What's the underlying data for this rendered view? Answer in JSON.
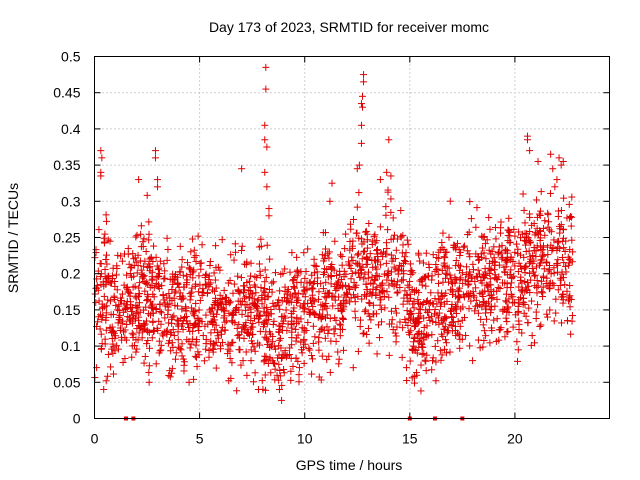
{
  "chart_data": {
    "type": "scatter",
    "title": "Day 173 of 2023, SRMTID for receiver momc",
    "xlabel": "GPS time / hours",
    "ylabel": "SRMTID / TECUs",
    "xlim": [
      0,
      24.5
    ],
    "ylim": [
      0,
      0.5
    ],
    "x_ticks": [
      "0",
      "5",
      "10",
      "15",
      "20"
    ],
    "x_tick_values": [
      0,
      5,
      10,
      15,
      20
    ],
    "y_ticks": [
      "0",
      "0.05",
      "0.1",
      "0.15",
      "0.2",
      "0.25",
      "0.3",
      "0.35",
      "0.4",
      "0.45",
      "0.5"
    ],
    "y_tick_values": [
      0,
      0.05,
      0.1,
      0.15,
      0.2,
      0.25,
      0.3,
      0.35,
      0.4,
      0.45,
      0.5
    ],
    "grid": true,
    "marker": "+",
    "color": "#e00000",
    "zero_markers_x": [
      1.5,
      1.85,
      15.0,
      16.2,
      17.5
    ],
    "profile": [
      [
        0.0,
        0.15,
        0.05
      ],
      [
        0.5,
        0.16,
        0.06
      ],
      [
        1.0,
        0.14,
        0.05
      ],
      [
        1.5,
        0.15,
        0.05
      ],
      [
        2.0,
        0.17,
        0.06
      ],
      [
        2.5,
        0.16,
        0.06
      ],
      [
        3.0,
        0.15,
        0.05
      ],
      [
        3.5,
        0.15,
        0.05
      ],
      [
        4.0,
        0.14,
        0.05
      ],
      [
        4.5,
        0.15,
        0.05
      ],
      [
        5.0,
        0.17,
        0.05
      ],
      [
        5.5,
        0.16,
        0.05
      ],
      [
        6.0,
        0.15,
        0.05
      ],
      [
        6.5,
        0.14,
        0.05
      ],
      [
        7.0,
        0.15,
        0.05
      ],
      [
        7.5,
        0.14,
        0.05
      ],
      [
        8.0,
        0.15,
        0.06
      ],
      [
        8.5,
        0.13,
        0.05
      ],
      [
        9.0,
        0.13,
        0.05
      ],
      [
        9.5,
        0.14,
        0.05
      ],
      [
        10.0,
        0.15,
        0.05
      ],
      [
        10.5,
        0.15,
        0.05
      ],
      [
        11.0,
        0.16,
        0.05
      ],
      [
        11.5,
        0.17,
        0.05
      ],
      [
        12.0,
        0.19,
        0.05
      ],
      [
        12.5,
        0.2,
        0.05
      ],
      [
        13.0,
        0.2,
        0.05
      ],
      [
        13.5,
        0.2,
        0.05
      ],
      [
        14.0,
        0.21,
        0.06
      ],
      [
        14.5,
        0.19,
        0.05
      ],
      [
        15.0,
        0.15,
        0.05
      ],
      [
        15.5,
        0.14,
        0.05
      ],
      [
        16.0,
        0.15,
        0.05
      ],
      [
        16.5,
        0.17,
        0.05
      ],
      [
        17.0,
        0.17,
        0.05
      ],
      [
        17.5,
        0.18,
        0.05
      ],
      [
        18.0,
        0.19,
        0.05
      ],
      [
        18.5,
        0.18,
        0.05
      ],
      [
        19.0,
        0.19,
        0.05
      ],
      [
        19.5,
        0.2,
        0.05
      ],
      [
        20.0,
        0.19,
        0.05
      ],
      [
        20.5,
        0.21,
        0.06
      ],
      [
        21.0,
        0.22,
        0.06
      ],
      [
        21.5,
        0.22,
        0.06
      ],
      [
        22.0,
        0.2,
        0.05
      ],
      [
        22.5,
        0.21,
        0.05
      ],
      [
        22.8,
        0.21,
        0.05
      ]
    ],
    "spikes": [
      [
        0.3,
        0.37
      ],
      [
        0.3,
        0.34
      ],
      [
        0.3,
        0.335
      ],
      [
        0.35,
        0.36
      ],
      [
        2.1,
        0.33
      ],
      [
        2.9,
        0.37
      ],
      [
        2.9,
        0.36
      ],
      [
        3.0,
        0.33
      ],
      [
        3.0,
        0.32
      ],
      [
        8.15,
        0.485
      ],
      [
        8.15,
        0.455
      ],
      [
        8.1,
        0.405
      ],
      [
        8.1,
        0.385
      ],
      [
        8.2,
        0.375
      ],
      [
        8.1,
        0.34
      ],
      [
        8.2,
        0.32
      ],
      [
        8.3,
        0.29
      ],
      [
        8.3,
        0.28
      ],
      [
        7.0,
        0.345
      ],
      [
        11.3,
        0.325
      ],
      [
        11.2,
        0.3
      ],
      [
        12.8,
        0.475
      ],
      [
        12.8,
        0.465
      ],
      [
        12.75,
        0.445
      ],
      [
        12.7,
        0.435
      ],
      [
        12.75,
        0.43
      ],
      [
        12.7,
        0.405
      ],
      [
        12.7,
        0.38
      ],
      [
        12.6,
        0.35
      ],
      [
        12.5,
        0.345
      ],
      [
        14.0,
        0.385
      ],
      [
        13.9,
        0.34
      ],
      [
        14.1,
        0.335
      ],
      [
        13.6,
        0.33
      ],
      [
        20.6,
        0.39
      ],
      [
        20.6,
        0.385
      ],
      [
        20.7,
        0.37
      ],
      [
        21.1,
        0.355
      ],
      [
        21.7,
        0.365
      ],
      [
        22.1,
        0.36
      ],
      [
        22.3,
        0.355
      ],
      [
        22.2,
        0.35
      ],
      [
        21.8,
        0.345
      ],
      [
        22.0,
        0.33
      ],
      [
        21.9,
        0.32
      ],
      [
        8.9,
        0.025
      ],
      [
        8.8,
        0.04
      ],
      [
        7.8,
        0.04
      ],
      [
        2.6,
        0.05
      ],
      [
        4.5,
        0.05
      ]
    ]
  }
}
